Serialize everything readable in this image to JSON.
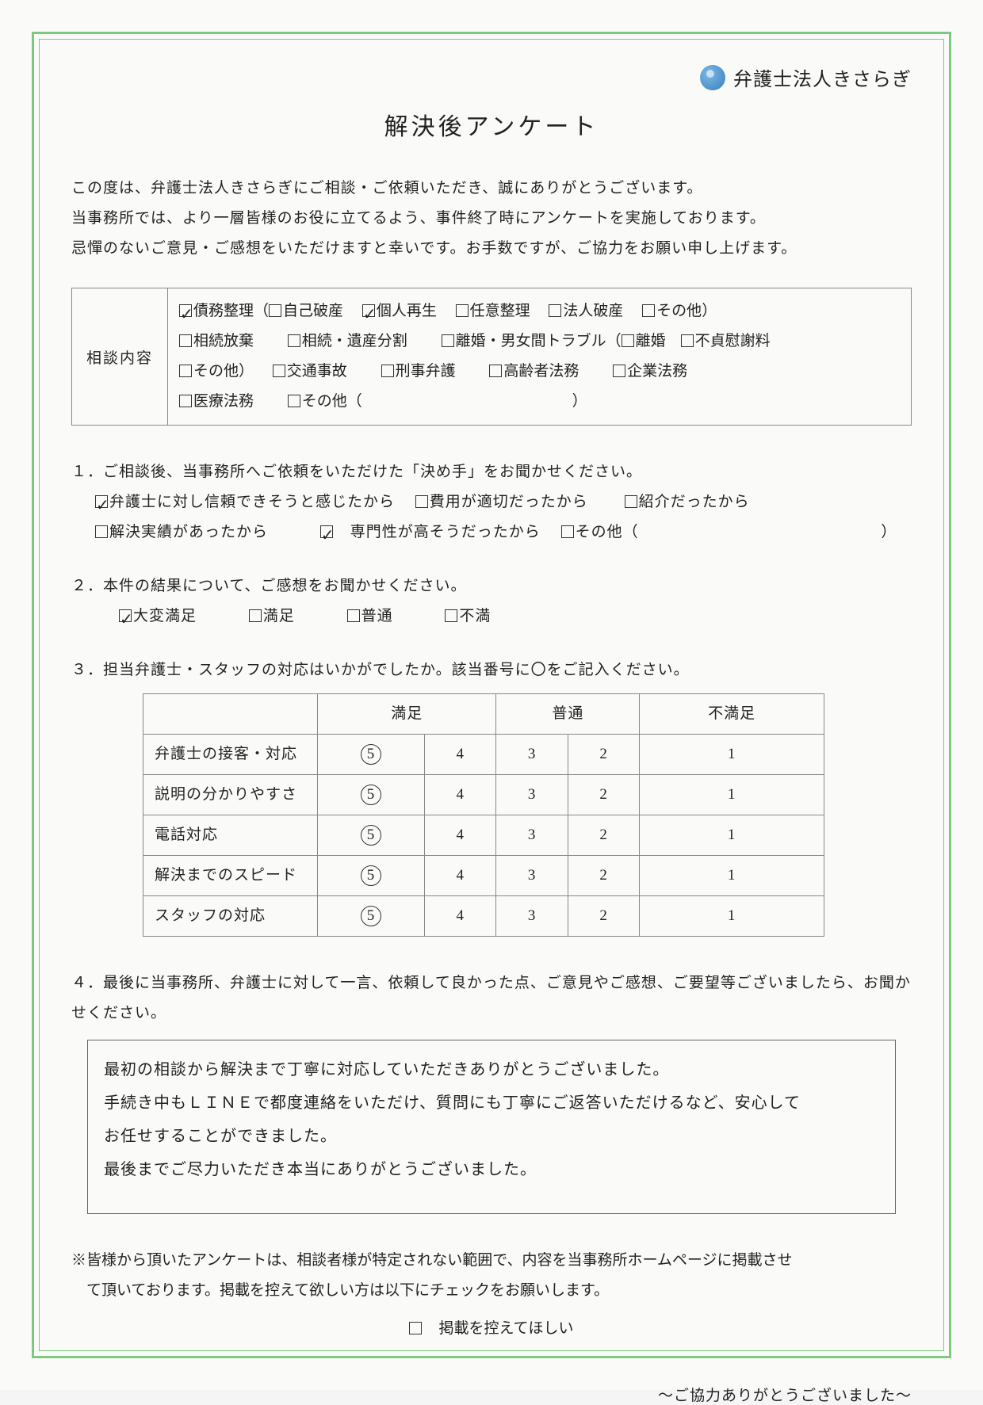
{
  "header": {
    "org_name": "弁護士法人きさらぎ",
    "title": "解決後アンケート"
  },
  "intro": {
    "line1": "この度は、弁護士法人きさらぎにご相談・ご依頼いただき、誠にありがとうございます。",
    "line2": "当事務所では、より一層皆様のお役に立てるよう、事件終了時にアンケートを実施しております。",
    "line3": "忌憚のないご意見・ご感想をいただけますと幸いです。お手数ですが、ご協力をお願い申し上げます。"
  },
  "consult": {
    "label": "相談内容",
    "row1": {
      "saimu": {
        "label": "債務整理",
        "checked": true
      },
      "jikohasan": {
        "label": "自己破産",
        "checked": false
      },
      "kojinsaisei": {
        "label": "個人再生",
        "checked": true
      },
      "niniseiri": {
        "label": "任意整理",
        "checked": false
      },
      "hojinhasan": {
        "label": "法人破産",
        "checked": false
      },
      "sonota1": {
        "label": "その他",
        "checked": false
      }
    },
    "row2": {
      "souzokuhouki": {
        "label": "相続放棄",
        "checked": false
      },
      "souzokuisan": {
        "label": "相続・遺産分割",
        "checked": false
      },
      "rikon_label": "離婚・男女間トラブル",
      "rikon": {
        "label": "離婚",
        "checked": false
      },
      "futei": {
        "label": "不貞慰謝料",
        "checked": false
      }
    },
    "row3": {
      "sonota2": {
        "label": "その他",
        "checked": false
      },
      "koutsuu": {
        "label": "交通事故",
        "checked": false
      },
      "keiji": {
        "label": "刑事弁護",
        "checked": false
      },
      "koureisha": {
        "label": "高齢者法務",
        "checked": false
      },
      "kigyou": {
        "label": "企業法務",
        "checked": false
      }
    },
    "row4": {
      "iryou": {
        "label": "医療法務",
        "checked": false
      },
      "sonota3": {
        "label": "その他（",
        "checked": false
      },
      "close": "）"
    }
  },
  "q1": {
    "text": "１．ご相談後、当事務所へご依頼をいただけた「決め手」をお聞かせください。",
    "opts": {
      "shinrai": {
        "label": "弁護士に対し信頼できそうと感じたから",
        "checked": true
      },
      "hiyou": {
        "label": "費用が適切だったから",
        "checked": false
      },
      "shoukai": {
        "label": "紹介だったから",
        "checked": false
      },
      "jisseki": {
        "label": "解決実績があったから",
        "checked": false
      },
      "senmon": {
        "label": "　専門性が高そうだったから",
        "checked": true
      },
      "sonota": {
        "label": "その他（",
        "checked": false
      },
      "close": "）"
    }
  },
  "q2": {
    "text": "２．本件の結果について、ご感想をお聞かせください。",
    "opts": {
      "daihen": {
        "label": "大変満足",
        "checked": true
      },
      "manzoku": {
        "label": "満足",
        "checked": false
      },
      "futsuu": {
        "label": "普通",
        "checked": false
      },
      "fuman": {
        "label": "不満",
        "checked": false
      }
    }
  },
  "q3": {
    "text": "３．担当弁護士・スタッフの対応はいかがでしたか。該当番号に〇をご記入ください。",
    "headers": {
      "h1": "満足",
      "h2": "普通",
      "h3": "不満足"
    },
    "rows": [
      {
        "label": "弁護士の接客・対応",
        "selected": 5
      },
      {
        "label": "説明の分かりやすさ",
        "selected": 5
      },
      {
        "label": "電話対応",
        "selected": 5
      },
      {
        "label": "解決までのスピード",
        "selected": 5
      },
      {
        "label": "スタッフの対応",
        "selected": 5
      }
    ],
    "scale": [
      "5",
      "4",
      "3",
      "2",
      "1"
    ]
  },
  "q4": {
    "text": "４．最後に当事務所、弁護士に対して一言、依頼して良かった点、ご意見やご感想、ご要望等ございましたら、お聞かせください。",
    "comment_lines": [
      "最初の相談から解決まで丁寧に対応していただきありがとうございました。",
      "手続き中もＬＩＮＥで都度連絡をいただけ、質問にも丁寧にご返答いただけるなど、安心して",
      "お任せすることができました。",
      "最後までご尽力いただき本当にありがとうございました。"
    ]
  },
  "footer": {
    "note1": "※皆様から頂いたアンケートは、相談者様が特定されない範囲で、内容を当事務所ホームページに掲載させ",
    "note2": "　て頂いております。掲載を控えて欲しい方は以下にチェックをお願いします。",
    "optout": {
      "label": "　掲載を控えてほしい",
      "checked": false
    },
    "thanks": "～ご協力ありがとうございました～"
  }
}
